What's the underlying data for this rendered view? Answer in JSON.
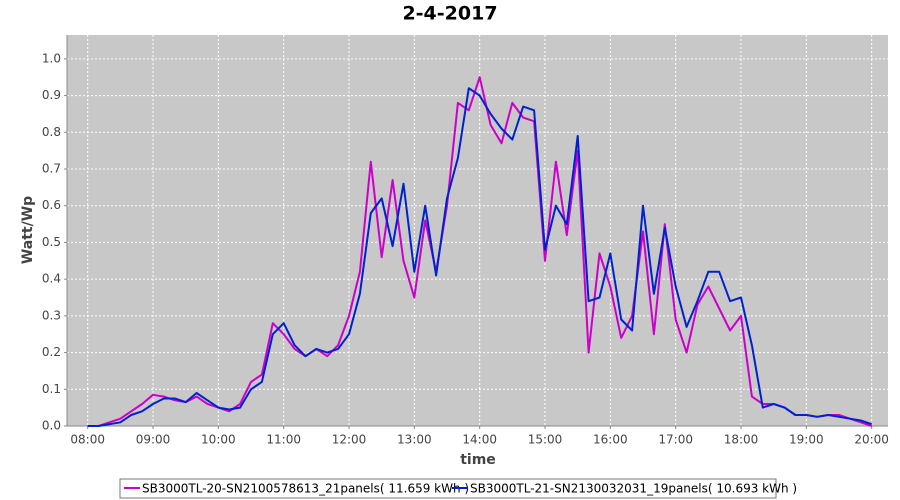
{
  "chart_data": {
    "type": "line",
    "title": "2-4-2017",
    "x_label": "time",
    "y_label": "Watt/Wp",
    "x": [
      "08:00",
      "08:10",
      "08:20",
      "08:30",
      "08:40",
      "08:50",
      "09:00",
      "09:10",
      "09:20",
      "09:30",
      "09:40",
      "09:50",
      "10:00",
      "10:10",
      "10:20",
      "10:30",
      "10:40",
      "10:50",
      "11:00",
      "11:10",
      "11:20",
      "11:30",
      "11:40",
      "11:50",
      "12:00",
      "12:10",
      "12:20",
      "12:30",
      "12:40",
      "12:50",
      "13:00",
      "13:10",
      "13:20",
      "13:30",
      "13:40",
      "13:50",
      "14:00",
      "14:10",
      "14:20",
      "14:30",
      "14:40",
      "14:50",
      "15:00",
      "15:10",
      "15:20",
      "15:30",
      "15:40",
      "15:50",
      "16:00",
      "16:10",
      "16:20",
      "16:30",
      "16:40",
      "16:50",
      "17:00",
      "17:10",
      "17:20",
      "17:30",
      "17:40",
      "17:50",
      "18:00",
      "18:10",
      "18:20",
      "18:30",
      "18:40",
      "18:50",
      "19:00",
      "19:10",
      "19:20",
      "19:30",
      "19:40",
      "19:50",
      "20:00"
    ],
    "series": [
      {
        "name": "SB3000TL-20-SN2100578613_21panels( 11.659 kWh )",
        "color": "#cc00cc",
        "values": [
          0,
          0,
          0.01,
          0.02,
          0.04,
          0.06,
          0.085,
          0.08,
          0.07,
          0.065,
          0.08,
          0.06,
          0.05,
          0.04,
          0.06,
          0.12,
          0.14,
          0.28,
          0.25,
          0.21,
          0.19,
          0.21,
          0.19,
          0.22,
          0.3,
          0.42,
          0.72,
          0.46,
          0.67,
          0.45,
          0.35,
          0.56,
          0.42,
          0.6,
          0.88,
          0.86,
          0.95,
          0.82,
          0.77,
          0.88,
          0.84,
          0.83,
          0.45,
          0.72,
          0.52,
          0.75,
          0.2,
          0.47,
          0.38,
          0.24,
          0.3,
          0.53,
          0.25,
          0.55,
          0.29,
          0.2,
          0.33,
          0.38,
          0.32,
          0.26,
          0.3,
          0.08,
          0.06,
          0.06,
          0.05,
          0.03,
          0.03,
          0.025,
          0.03,
          0.03,
          0.02,
          0.01,
          0
        ]
      },
      {
        "name": "SB3000TL-21-SN2130032031_19panels( 10.693 kWh )",
        "color": "#0022cc",
        "values": [
          0,
          0,
          0.005,
          0.01,
          0.03,
          0.04,
          0.06,
          0.075,
          0.075,
          0.065,
          0.09,
          0.07,
          0.05,
          0.045,
          0.05,
          0.1,
          0.12,
          0.25,
          0.28,
          0.22,
          0.19,
          0.21,
          0.2,
          0.21,
          0.25,
          0.36,
          0.58,
          0.62,
          0.49,
          0.66,
          0.42,
          0.6,
          0.41,
          0.62,
          0.73,
          0.92,
          0.9,
          0.85,
          0.81,
          0.78,
          0.87,
          0.86,
          0.48,
          0.6,
          0.55,
          0.79,
          0.34,
          0.35,
          0.47,
          0.29,
          0.26,
          0.6,
          0.36,
          0.54,
          0.38,
          0.27,
          0.34,
          0.42,
          0.42,
          0.34,
          0.35,
          0.22,
          0.05,
          0.06,
          0.05,
          0.03,
          0.03,
          0.025,
          0.03,
          0.025,
          0.02,
          0.015,
          0.005
        ]
      }
    ],
    "xlim": [
      "07:41",
      "20:15"
    ],
    "xticks": [
      "08:00",
      "09:00",
      "10:00",
      "11:00",
      "12:00",
      "13:00",
      "14:00",
      "15:00",
      "16:00",
      "17:00",
      "18:00",
      "19:00",
      "20:00"
    ],
    "ylim": [
      0,
      1.065
    ],
    "yticks": [
      {
        "value": 0,
        "label": "0.0"
      },
      0.1,
      0.2,
      0.3,
      0.4,
      0.5,
      0.6,
      0.7,
      0.8,
      0.9,
      {
        "value": 1,
        "label": "1.0"
      }
    ],
    "grid": true,
    "legend": "bottom"
  }
}
